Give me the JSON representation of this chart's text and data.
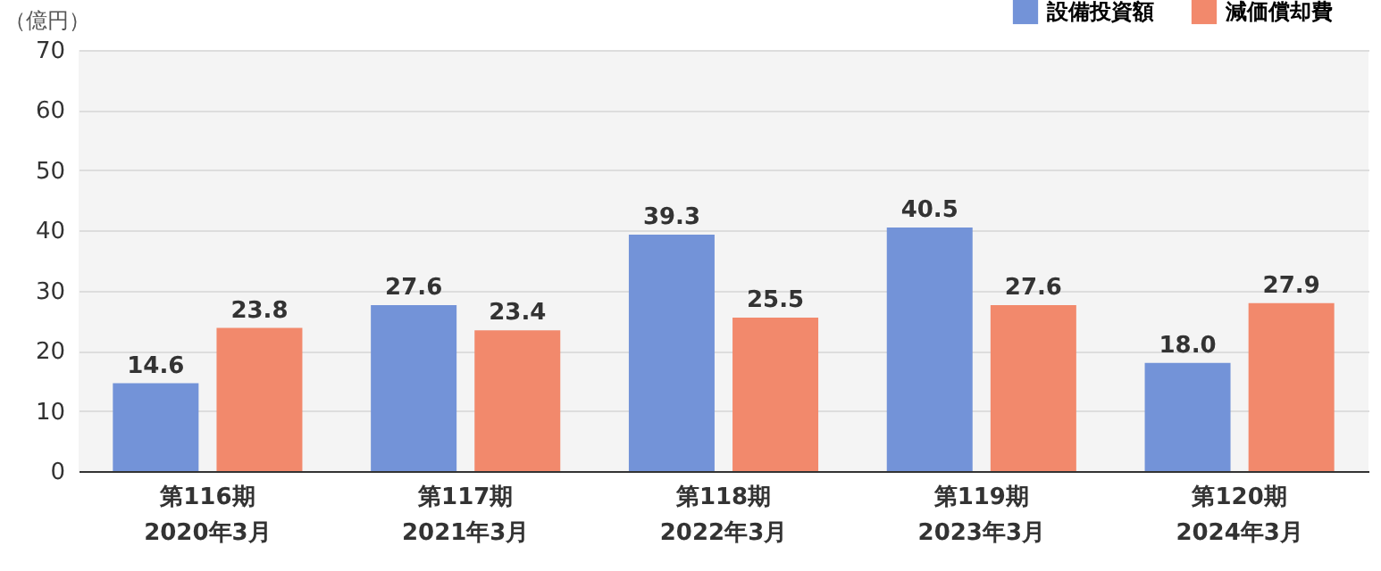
{
  "chart_data": {
    "type": "bar",
    "ylabel": "（億円）",
    "categories": [
      "第116期\n2020年3月",
      "第117期\n2021年3月",
      "第118期\n2022年3月",
      "第119期\n2023年3月",
      "第120期\n2024年3月"
    ],
    "series": [
      {
        "name": "設備投資額",
        "color": "#7393d8",
        "values": [
          14.6,
          27.6,
          39.3,
          40.5,
          18.0
        ],
        "value_labels": [
          "14.6",
          "27.6",
          "39.3",
          "40.5",
          "18.0"
        ]
      },
      {
        "name": "減価償却費",
        "color": "#f2896c",
        "values": [
          23.8,
          23.4,
          25.5,
          27.6,
          27.9
        ],
        "value_labels": [
          "23.8",
          "23.4",
          "25.5",
          "27.6",
          "27.9"
        ]
      }
    ],
    "ylim": [
      0,
      70
    ],
    "yticks": [
      0,
      10,
      20,
      30,
      40,
      50,
      60,
      70
    ],
    "grid": "y",
    "legend": "top right"
  }
}
